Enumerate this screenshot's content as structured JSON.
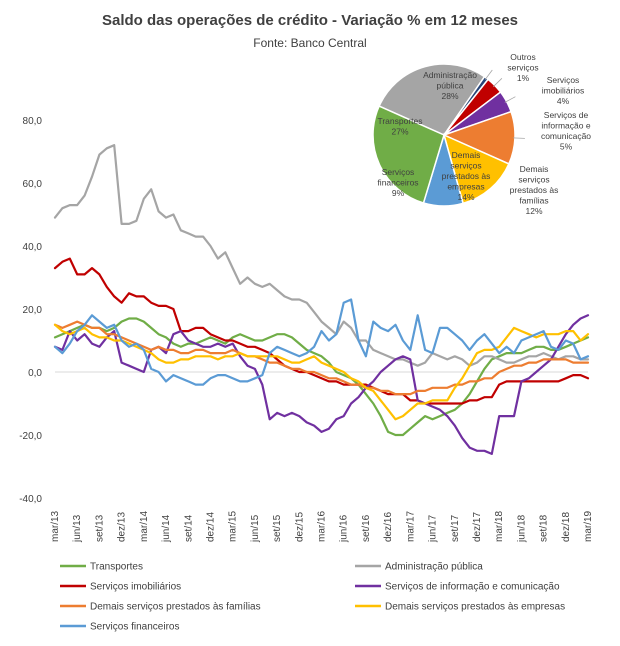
{
  "header": {
    "title": "Saldo das operações de crédito - Variação % em 12 meses",
    "subtitle": "Fonte: Banco Central"
  },
  "chart_data": [
    {
      "type": "line",
      "title": "Saldo das operações de crédito - Variação % em 12 meses",
      "subtitle": "Fonte: Banco Central",
      "ylim": [
        -40,
        80
      ],
      "yticks": [
        "-40,0",
        "-20,0",
        "0,0",
        "20,0",
        "40,0",
        "60,0",
        "80,0"
      ],
      "x_tick_labels": [
        "mar/13",
        "jun/13",
        "set/13",
        "dez/13",
        "mar/14",
        "jun/14",
        "set/14",
        "dez/14",
        "mar/15",
        "jun/15",
        "set/15",
        "dez/15",
        "mar/16",
        "jun/16",
        "set/16",
        "dez/16",
        "mar/17",
        "jun/17",
        "set/17",
        "dez/17",
        "mar/18",
        "jun/18",
        "set/18",
        "dez/18",
        "mar/19"
      ],
      "x_start": "mar/13",
      "x_end": "mar/19",
      "grid": false,
      "legend_position": "bottom",
      "series": [
        {
          "name": "Transportes",
          "color": "#70ad47",
          "values": [
            11,
            12,
            13,
            14,
            15,
            14,
            14,
            13,
            14,
            16,
            17,
            17,
            16,
            14,
            12,
            11,
            9,
            8,
            9,
            9,
            10,
            11,
            10,
            9,
            11,
            12,
            11,
            10,
            10,
            11,
            12,
            12,
            11,
            9,
            7,
            6,
            5,
            3,
            0,
            -1,
            -2,
            -4,
            -7,
            -10,
            -14,
            -19,
            -20,
            -20,
            -18,
            -16,
            -14,
            -15,
            -14,
            -13,
            -12,
            -10,
            -7,
            -3,
            1,
            4,
            5,
            6,
            6,
            6,
            7,
            8,
            8,
            7,
            7,
            8,
            9,
            10,
            11
          ]
        },
        {
          "name": "Administração pública",
          "color": "#a5a5a5",
          "values": [
            49,
            52,
            53,
            53,
            56,
            62,
            69,
            71,
            72,
            47,
            47,
            48,
            55,
            58,
            51,
            49,
            50,
            45,
            44,
            43,
            43,
            40,
            36,
            38,
            33,
            28,
            30,
            28,
            27,
            28,
            26,
            24,
            23,
            23,
            22,
            19,
            16,
            14,
            12,
            16,
            14,
            10,
            10,
            7,
            6,
            5,
            4,
            4,
            3,
            2,
            3,
            6,
            5,
            4,
            5,
            4,
            2,
            3,
            5,
            5,
            4,
            3,
            3,
            4,
            5,
            5,
            6,
            5,
            4,
            5,
            5,
            4,
            4
          ]
        },
        {
          "name": "Serviços imobiliários",
          "color": "#c00000",
          "values": [
            33,
            35,
            36,
            31,
            31,
            33,
            31,
            27,
            24,
            22,
            25,
            24,
            24,
            22,
            21,
            21,
            20,
            13,
            13,
            14,
            14,
            12,
            11,
            10,
            10,
            9,
            8,
            8,
            7,
            6,
            4,
            2,
            1,
            0,
            0,
            -1,
            -2,
            -3,
            -3,
            -4,
            -4,
            -4,
            -4,
            -5,
            -6,
            -7,
            -7,
            -7,
            -9,
            -9,
            -10,
            -10,
            -10,
            -10,
            -10,
            -10,
            -9,
            -9,
            -8,
            -8,
            -4,
            -3,
            -3,
            -3,
            -3,
            -3,
            -3,
            -3,
            -3,
            -2,
            -1,
            -1,
            -2
          ]
        },
        {
          "name": "Serviços de informação e comunicação",
          "color": "#7030a0",
          "values": [
            8,
            7,
            13,
            10,
            12,
            9,
            8,
            11,
            13,
            3,
            2,
            1,
            0,
            7,
            8,
            6,
            12,
            13,
            10,
            9,
            8,
            8,
            9,
            8,
            9,
            5,
            2,
            1,
            -4,
            -15,
            -13,
            -14,
            -13,
            -14,
            -16,
            -17,
            -19,
            -18,
            -15,
            -14,
            -10,
            -8,
            -5,
            -3,
            0,
            2,
            4,
            5,
            4,
            -9,
            -10,
            -11,
            -12,
            -14,
            -17,
            -21,
            -24,
            -25,
            -25,
            -26,
            -14,
            -14,
            -14,
            -3,
            -2,
            0,
            2,
            4,
            8,
            12,
            15,
            17,
            18
          ]
        },
        {
          "name": "Demais serviços prestados às famílias",
          "color": "#ed7d31",
          "values": [
            15,
            14,
            15,
            16,
            15,
            14,
            14,
            12,
            12,
            11,
            10,
            9,
            8,
            7,
            8,
            7,
            7,
            6,
            6,
            7,
            7,
            6,
            6,
            6,
            7,
            6,
            5,
            5,
            4,
            3,
            3,
            2,
            1,
            1,
            0,
            0,
            -1,
            -2,
            -2,
            -3,
            -4,
            -4,
            -5,
            -5,
            -6,
            -6,
            -7,
            -7,
            -7,
            -6,
            -6,
            -5,
            -5,
            -5,
            -4,
            -4,
            -3,
            -3,
            -2,
            -2,
            0,
            1,
            2,
            2,
            3,
            3,
            4,
            4,
            4,
            4,
            3,
            3,
            3
          ]
        },
        {
          "name": "Demais serviços prestados às empresas",
          "color": "#ffc000",
          "values": [
            15,
            13,
            12,
            13,
            14,
            12,
            11,
            11,
            10,
            10,
            9,
            8,
            7,
            6,
            4,
            3,
            3,
            4,
            4,
            5,
            5,
            5,
            4,
            5,
            5,
            6,
            5,
            5,
            5,
            5,
            5,
            4,
            3,
            3,
            4,
            5,
            3,
            2,
            1,
            0,
            -2,
            -3,
            -5,
            -6,
            -9,
            -12,
            -15,
            -14,
            -12,
            -10,
            -10,
            -9,
            -9,
            -9,
            -5,
            -2,
            2,
            6,
            7,
            7,
            8,
            11,
            14,
            13,
            12,
            11,
            12,
            12,
            12,
            13,
            13,
            10,
            12
          ]
        },
        {
          "name": "Serviços financeiros",
          "color": "#5b9bd5",
          "values": [
            8,
            6,
            9,
            13,
            15,
            18,
            16,
            14,
            15,
            10,
            8,
            9,
            7,
            1,
            0,
            -3,
            -1,
            -2,
            -3,
            -4,
            -4,
            -2,
            -1,
            -1,
            -2,
            -3,
            -3,
            -2,
            -1,
            6,
            8,
            7,
            6,
            5,
            6,
            8,
            13,
            10,
            12,
            22,
            23,
            10,
            5,
            16,
            14,
            13,
            15,
            10,
            7,
            18,
            7,
            6,
            14,
            14,
            12,
            10,
            7,
            10,
            12,
            9,
            6,
            8,
            6,
            10,
            11,
            12,
            13,
            8,
            7,
            10,
            9,
            4,
            5
          ]
        }
      ]
    },
    {
      "type": "pie",
      "labels": [
        "Administração pública",
        "Outros serviços",
        "Serviços imobiliários",
        "Serviços de informação e comunicação",
        "Demais serviços prestados às famílias",
        "Demais serviços prestados às empresas",
        "Serviços financeiros",
        "Transportes"
      ],
      "values": [
        28,
        1,
        4,
        5,
        12,
        14,
        9,
        27
      ],
      "value_labels": [
        "28%",
        "1%",
        "4%",
        "5%",
        "12%",
        "14%",
        "9%",
        "27%"
      ],
      "colors": [
        "#a5a5a5",
        "#264478",
        "#c00000",
        "#7030a0",
        "#ed7d31",
        "#ffc000",
        "#5b9bd5",
        "#70ad47"
      ]
    }
  ],
  "pie_text": [
    {
      "lines": [
        "Administração",
        "pública"
      ],
      "pct": "28%"
    },
    {
      "lines": [
        "Outros",
        "serviços"
      ],
      "pct": "1%"
    },
    {
      "lines": [
        "Serviços",
        "imobiliários"
      ],
      "pct": "4%"
    },
    {
      "lines": [
        "Serviços de",
        "informação e",
        "comunicação"
      ],
      "pct": "5%"
    },
    {
      "lines": [
        "Demais",
        "serviços",
        "prestados às",
        "famílias"
      ],
      "pct": "12%"
    },
    {
      "lines": [
        "Demais",
        "serviços",
        "prestados às",
        "empresas"
      ],
      "pct": "14%"
    },
    {
      "lines": [
        "Serviços",
        "financeiros"
      ],
      "pct": "9%"
    },
    {
      "lines": [
        "Transportes"
      ],
      "pct": "27%"
    }
  ]
}
